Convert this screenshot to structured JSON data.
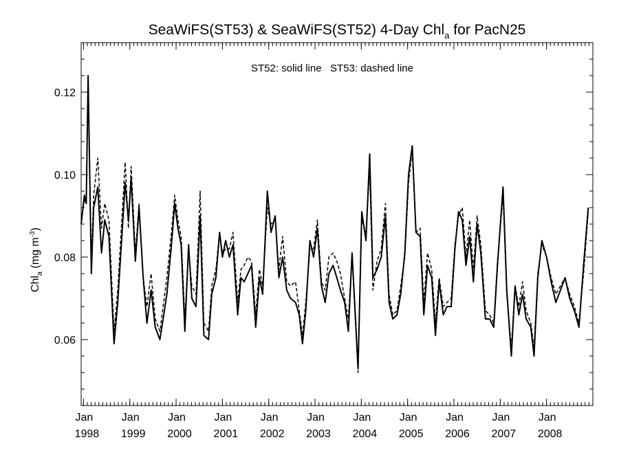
{
  "chart_data": {
    "type": "line",
    "title_main": "SeaWiFS(ST53) & SeaWiFS(ST52) 4-Day Chl",
    "title_sub": "a",
    "title_tail": " for PacN25",
    "annotation": "ST52: solid line   ST53: dashed line",
    "ylabel_main": "Chl",
    "ylabel_sub": "a",
    "ylabel_unit": " (mg m",
    "ylabel_exp": "-3",
    "ylabel_close": ")",
    "xlim": [
      1997.95,
      2009.0
    ],
    "ylim": [
      0.044,
      0.132
    ],
    "yticks": [
      {
        "value": 0.06,
        "label": "0.06"
      },
      {
        "value": 0.08,
        "label": "0.08"
      },
      {
        "value": 0.1,
        "label": "0.10"
      },
      {
        "value": 0.12,
        "label": "0.12"
      }
    ],
    "yminor_step": 0.004,
    "xticks": [
      {
        "value": 1998.0,
        "month": "Jan",
        "year": "1998"
      },
      {
        "value": 1999.0,
        "month": "Jan",
        "year": "1999"
      },
      {
        "value": 2000.0,
        "month": "Jan",
        "year": "2000"
      },
      {
        "value": 2001.0,
        "month": "Jan",
        "year": "2001"
      },
      {
        "value": 2002.0,
        "month": "Jan",
        "year": "2002"
      },
      {
        "value": 2003.0,
        "month": "Jan",
        "year": "2003"
      },
      {
        "value": 2004.0,
        "month": "Jan",
        "year": "2004"
      },
      {
        "value": 2005.0,
        "month": "Jan",
        "year": "2005"
      },
      {
        "value": 2006.0,
        "month": "Jan",
        "year": "2006"
      },
      {
        "value": 2007.0,
        "month": "Jan",
        "year": "2007"
      },
      {
        "value": 2008.0,
        "month": "Jan",
        "year": "2008"
      }
    ],
    "xminor_step": 0.08333,
    "series": [
      {
        "name": "ST52",
        "style": "solid",
        "color": "#000000",
        "points": [
          [
            1997.95,
            0.088
          ],
          [
            1998.02,
            0.095
          ],
          [
            1998.06,
            0.093
          ],
          [
            1998.1,
            0.124
          ],
          [
            1998.17,
            0.076
          ],
          [
            1998.22,
            0.092
          ],
          [
            1998.31,
            0.097
          ],
          [
            1998.39,
            0.081
          ],
          [
            1998.46,
            0.089
          ],
          [
            1998.55,
            0.085
          ],
          [
            1998.66,
            0.059
          ],
          [
            1998.74,
            0.069
          ],
          [
            1998.9,
            0.098
          ],
          [
            1998.97,
            0.089
          ],
          [
            1999.03,
            0.099
          ],
          [
            1999.12,
            0.079
          ],
          [
            1999.2,
            0.092
          ],
          [
            1999.29,
            0.075
          ],
          [
            1999.37,
            0.064
          ],
          [
            1999.46,
            0.072
          ],
          [
            1999.55,
            0.063
          ],
          [
            1999.65,
            0.06
          ],
          [
            1999.72,
            0.065
          ],
          [
            1999.8,
            0.071
          ],
          [
            1999.9,
            0.083
          ],
          [
            1999.97,
            0.093
          ],
          [
            2000.04,
            0.087
          ],
          [
            2000.11,
            0.083
          ],
          [
            2000.19,
            0.062
          ],
          [
            2000.27,
            0.083
          ],
          [
            2000.34,
            0.07
          ],
          [
            2000.43,
            0.068
          ],
          [
            2000.52,
            0.09
          ],
          [
            2000.6,
            0.061
          ],
          [
            2000.7,
            0.06
          ],
          [
            2000.77,
            0.071
          ],
          [
            2000.86,
            0.075
          ],
          [
            2000.94,
            0.086
          ],
          [
            2001.0,
            0.08
          ],
          [
            2001.07,
            0.084
          ],
          [
            2001.15,
            0.08
          ],
          [
            2001.23,
            0.083
          ],
          [
            2001.33,
            0.066
          ],
          [
            2001.4,
            0.075
          ],
          [
            2001.47,
            0.074
          ],
          [
            2001.55,
            0.076
          ],
          [
            2001.63,
            0.078
          ],
          [
            2001.72,
            0.063
          ],
          [
            2001.8,
            0.075
          ],
          [
            2001.87,
            0.071
          ],
          [
            2001.97,
            0.096
          ],
          [
            2002.05,
            0.086
          ],
          [
            2002.14,
            0.09
          ],
          [
            2002.22,
            0.075
          ],
          [
            2002.3,
            0.08
          ],
          [
            2002.39,
            0.072
          ],
          [
            2002.47,
            0.07
          ],
          [
            2002.58,
            0.069
          ],
          [
            2002.66,
            0.066
          ],
          [
            2002.73,
            0.059
          ],
          [
            2002.8,
            0.067
          ],
          [
            2002.89,
            0.084
          ],
          [
            2002.97,
            0.08
          ],
          [
            2003.05,
            0.087
          ],
          [
            2003.14,
            0.073
          ],
          [
            2003.22,
            0.069
          ],
          [
            2003.3,
            0.076
          ],
          [
            2003.39,
            0.078
          ],
          [
            2003.47,
            0.075
          ],
          [
            2003.55,
            0.072
          ],
          [
            2003.64,
            0.069
          ],
          [
            2003.72,
            0.062
          ],
          [
            2003.8,
            0.081
          ],
          [
            2003.93,
            0.053
          ],
          [
            2004.01,
            0.091
          ],
          [
            2004.1,
            0.084
          ],
          [
            2004.18,
            0.105
          ],
          [
            2004.25,
            0.075
          ],
          [
            2004.34,
            0.077
          ],
          [
            2004.43,
            0.08
          ],
          [
            2004.52,
            0.09
          ],
          [
            2004.6,
            0.069
          ],
          [
            2004.68,
            0.065
          ],
          [
            2004.77,
            0.066
          ],
          [
            2004.85,
            0.071
          ],
          [
            2004.94,
            0.081
          ],
          [
            2005.02,
            0.1
          ],
          [
            2005.1,
            0.107
          ],
          [
            2005.18,
            0.086
          ],
          [
            2005.27,
            0.085
          ],
          [
            2005.35,
            0.066
          ],
          [
            2005.43,
            0.078
          ],
          [
            2005.52,
            0.075
          ],
          [
            2005.6,
            0.061
          ],
          [
            2005.68,
            0.074
          ],
          [
            2005.77,
            0.066
          ],
          [
            2005.85,
            0.068
          ],
          [
            2005.94,
            0.068
          ],
          [
            2006.02,
            0.082
          ],
          [
            2006.1,
            0.091
          ],
          [
            2006.18,
            0.089
          ],
          [
            2006.26,
            0.078
          ],
          [
            2006.34,
            0.085
          ],
          [
            2006.42,
            0.074
          ],
          [
            2006.5,
            0.088
          ],
          [
            2006.58,
            0.081
          ],
          [
            2006.68,
            0.065
          ],
          [
            2006.77,
            0.065
          ],
          [
            2006.86,
            0.063
          ],
          [
            2006.94,
            0.078
          ],
          [
            2007.06,
            0.097
          ],
          [
            2007.14,
            0.072
          ],
          [
            2007.24,
            0.056
          ],
          [
            2007.32,
            0.073
          ],
          [
            2007.4,
            0.066
          ],
          [
            2007.48,
            0.071
          ],
          [
            2007.56,
            0.065
          ],
          [
            2007.66,
            0.063
          ],
          [
            2007.73,
            0.056
          ],
          [
            2007.81,
            0.075
          ],
          [
            2007.9,
            0.084
          ],
          [
            2008.0,
            0.08
          ],
          [
            2008.1,
            0.074
          ],
          [
            2008.2,
            0.069
          ],
          [
            2008.3,
            0.072
          ],
          [
            2008.4,
            0.075
          ],
          [
            2008.5,
            0.07
          ],
          [
            2008.6,
            0.067
          ],
          [
            2008.7,
            0.063
          ],
          [
            2008.8,
            0.078
          ],
          [
            2008.9,
            0.092
          ]
        ]
      },
      {
        "name": "ST53",
        "style": "dashed",
        "color": "#000000",
        "points": [
          [
            1997.95,
            0.089
          ],
          [
            1998.02,
            0.094
          ],
          [
            1998.06,
            0.093
          ],
          [
            1998.1,
            0.124
          ],
          [
            1998.17,
            0.079
          ],
          [
            1998.22,
            0.095
          ],
          [
            1998.31,
            0.104
          ],
          [
            1998.39,
            0.087
          ],
          [
            1998.46,
            0.093
          ],
          [
            1998.55,
            0.089
          ],
          [
            1998.66,
            0.062
          ],
          [
            1998.74,
            0.072
          ],
          [
            1998.9,
            0.103
          ],
          [
            1998.97,
            0.087
          ],
          [
            1999.03,
            0.102
          ],
          [
            1999.12,
            0.081
          ],
          [
            1999.2,
            0.093
          ],
          [
            1999.29,
            0.075
          ],
          [
            1999.37,
            0.068
          ],
          [
            1999.46,
            0.076
          ],
          [
            1999.55,
            0.065
          ],
          [
            1999.65,
            0.062
          ],
          [
            1999.72,
            0.068
          ],
          [
            1999.8,
            0.075
          ],
          [
            1999.9,
            0.086
          ],
          [
            1999.97,
            0.095
          ],
          [
            2000.04,
            0.089
          ],
          [
            2000.11,
            0.085
          ],
          [
            2000.19,
            0.065
          ],
          [
            2000.27,
            0.082
          ],
          [
            2000.34,
            0.073
          ],
          [
            2000.43,
            0.071
          ],
          [
            2000.52,
            0.096
          ],
          [
            2000.6,
            0.064
          ],
          [
            2000.7,
            0.062
          ],
          [
            2000.77,
            0.073
          ],
          [
            2000.86,
            0.077
          ],
          [
            2000.94,
            0.086
          ],
          [
            2001.0,
            0.081
          ],
          [
            2001.07,
            0.082
          ],
          [
            2001.15,
            0.082
          ],
          [
            2001.23,
            0.086
          ],
          [
            2001.33,
            0.069
          ],
          [
            2001.4,
            0.077
          ],
          [
            2001.47,
            0.078
          ],
          [
            2001.55,
            0.08
          ],
          [
            2001.63,
            0.079
          ],
          [
            2001.72,
            0.066
          ],
          [
            2001.8,
            0.077
          ],
          [
            2001.87,
            0.073
          ],
          [
            2001.97,
            0.092
          ],
          [
            2002.05,
            0.088
          ],
          [
            2002.14,
            0.089
          ],
          [
            2002.22,
            0.077
          ],
          [
            2002.3,
            0.085
          ],
          [
            2002.39,
            0.074
          ],
          [
            2002.47,
            0.073
          ],
          [
            2002.58,
            0.074
          ],
          [
            2002.66,
            0.067
          ],
          [
            2002.73,
            0.061
          ],
          [
            2002.8,
            0.069
          ],
          [
            2002.89,
            0.082
          ],
          [
            2002.97,
            0.082
          ],
          [
            2003.05,
            0.089
          ],
          [
            2003.14,
            0.074
          ],
          [
            2003.22,
            0.072
          ],
          [
            2003.3,
            0.08
          ],
          [
            2003.39,
            0.081
          ],
          [
            2003.47,
            0.079
          ],
          [
            2003.55,
            0.076
          ],
          [
            2003.64,
            0.07
          ],
          [
            2003.72,
            0.065
          ],
          [
            2003.8,
            0.08
          ],
          [
            2003.93,
            0.052
          ],
          [
            2004.01,
            0.089
          ],
          [
            2004.1,
            0.086
          ],
          [
            2004.18,
            0.101
          ],
          [
            2004.25,
            0.072
          ],
          [
            2004.34,
            0.079
          ],
          [
            2004.43,
            0.082
          ],
          [
            2004.52,
            0.093
          ],
          [
            2004.6,
            0.071
          ],
          [
            2004.68,
            0.066
          ],
          [
            2004.77,
            0.067
          ],
          [
            2004.85,
            0.073
          ],
          [
            2004.94,
            0.08
          ],
          [
            2005.02,
            0.098
          ],
          [
            2005.1,
            0.106
          ],
          [
            2005.18,
            0.086
          ],
          [
            2005.27,
            0.087
          ],
          [
            2005.35,
            0.069
          ],
          [
            2005.43,
            0.081
          ],
          [
            2005.52,
            0.077
          ],
          [
            2005.6,
            0.064
          ],
          [
            2005.68,
            0.075
          ],
          [
            2005.77,
            0.068
          ],
          [
            2005.85,
            0.069
          ],
          [
            2005.94,
            0.07
          ],
          [
            2006.02,
            0.083
          ],
          [
            2006.1,
            0.09
          ],
          [
            2006.18,
            0.092
          ],
          [
            2006.26,
            0.08
          ],
          [
            2006.34,
            0.089
          ],
          [
            2006.42,
            0.077
          ],
          [
            2006.5,
            0.09
          ],
          [
            2006.58,
            0.083
          ],
          [
            2006.68,
            0.067
          ],
          [
            2006.77,
            0.066
          ],
          [
            2006.86,
            0.064
          ],
          [
            2006.94,
            0.079
          ],
          [
            2007.06,
            0.095
          ],
          [
            2007.14,
            0.071
          ],
          [
            2007.24,
            0.058
          ],
          [
            2007.32,
            0.073
          ],
          [
            2007.4,
            0.068
          ],
          [
            2007.48,
            0.074
          ],
          [
            2007.56,
            0.067
          ],
          [
            2007.66,
            0.064
          ],
          [
            2007.73,
            0.058
          ],
          [
            2007.81,
            0.076
          ],
          [
            2007.9,
            0.083
          ],
          [
            2008.0,
            0.08
          ],
          [
            2008.1,
            0.075
          ],
          [
            2008.2,
            0.071
          ],
          [
            2008.3,
            0.073
          ],
          [
            2008.4,
            0.075
          ],
          [
            2008.5,
            0.071
          ],
          [
            2008.6,
            0.068
          ],
          [
            2008.7,
            0.064
          ],
          [
            2008.8,
            0.076
          ],
          [
            2008.9,
            0.091
          ]
        ]
      }
    ]
  }
}
